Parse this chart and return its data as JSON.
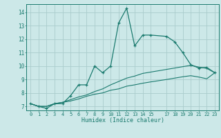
{
  "xlabel": "Humidex (Indice chaleur)",
  "bg_color": "#cce8e8",
  "grid_color": "#aacccc",
  "line_color": "#1a7a6e",
  "xlim": [
    -0.5,
    23.5
  ],
  "ylim": [
    6.7,
    14.6
  ],
  "xticks": [
    0,
    1,
    2,
    3,
    4,
    5,
    6,
    7,
    8,
    9,
    10,
    11,
    12,
    13,
    14,
    15,
    17,
    18,
    19,
    20,
    21,
    22,
    23
  ],
  "yticks": [
    7,
    8,
    9,
    10,
    11,
    12,
    13,
    14
  ],
  "line1_x": [
    0,
    1,
    2,
    3,
    4,
    5,
    6,
    7,
    8,
    9,
    10,
    11,
    12,
    13,
    14,
    15,
    17,
    18,
    19,
    20,
    21,
    22,
    23
  ],
  "line1_y": [
    7.2,
    7.0,
    6.85,
    7.2,
    7.2,
    7.8,
    8.6,
    8.6,
    10.0,
    9.5,
    10.0,
    13.2,
    14.3,
    11.5,
    12.3,
    12.3,
    12.2,
    11.8,
    11.0,
    10.1,
    9.85,
    9.9,
    9.5
  ],
  "line2_x": [
    0,
    1,
    2,
    3,
    4,
    5,
    6,
    7,
    8,
    9,
    10,
    11,
    12,
    13,
    14,
    15,
    17,
    18,
    19,
    20,
    21,
    22,
    23
  ],
  "line2_y": [
    7.2,
    7.0,
    7.0,
    7.2,
    7.3,
    7.5,
    7.7,
    7.85,
    8.1,
    8.3,
    8.6,
    8.85,
    9.1,
    9.25,
    9.45,
    9.55,
    9.75,
    9.85,
    9.95,
    10.05,
    9.92,
    9.82,
    9.5
  ],
  "line3_x": [
    0,
    1,
    2,
    3,
    4,
    5,
    6,
    7,
    8,
    9,
    10,
    11,
    12,
    13,
    14,
    15,
    17,
    18,
    19,
    20,
    21,
    22,
    23
  ],
  "line3_y": [
    7.2,
    7.0,
    7.0,
    7.2,
    7.3,
    7.4,
    7.55,
    7.75,
    7.9,
    8.0,
    8.2,
    8.3,
    8.5,
    8.6,
    8.72,
    8.82,
    9.0,
    9.1,
    9.2,
    9.28,
    9.18,
    9.05,
    9.5
  ]
}
